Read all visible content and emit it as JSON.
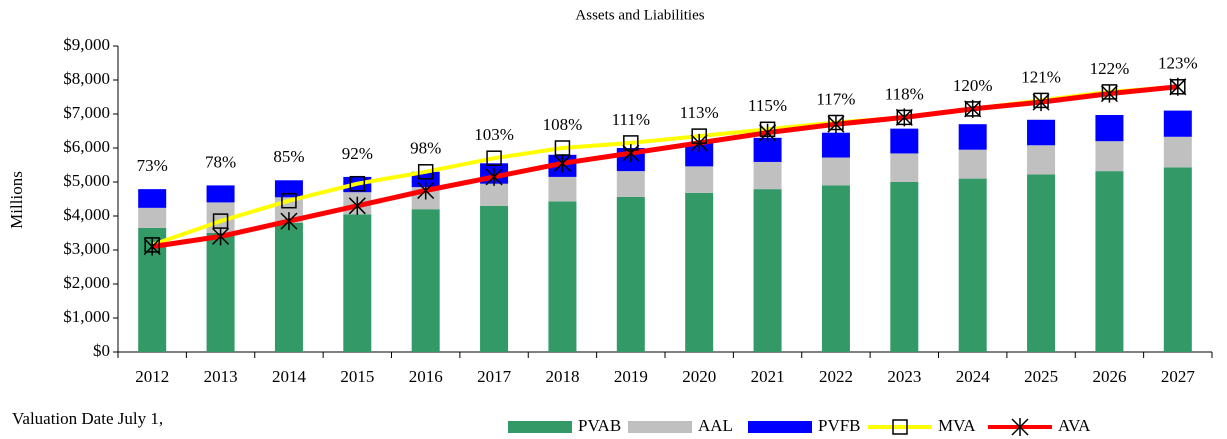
{
  "chart_data": {
    "type": "bar",
    "stacked": true,
    "title": "Assets and Liabilities",
    "y_label": "Millions",
    "x_label": "Valuation Date July 1,",
    "categories": [
      "2012",
      "2013",
      "2014",
      "2015",
      "2016",
      "2017",
      "2018",
      "2019",
      "2020",
      "2021",
      "2022",
      "2023",
      "2024",
      "2025",
      "2026",
      "2027"
    ],
    "series": [
      {
        "name": "PVAB",
        "type": "bar",
        "color": "#339966",
        "values": [
          3650,
          3500,
          3800,
          4050,
          4200,
          4300,
          4430,
          4560,
          4680,
          4790,
          4900,
          5000,
          5100,
          5220,
          5320,
          5430
        ]
      },
      {
        "name": "AAL",
        "type": "bar",
        "color": "#c0c0c0",
        "values": [
          590,
          900,
          750,
          650,
          650,
          650,
          720,
          760,
          780,
          800,
          820,
          840,
          850,
          860,
          880,
          900
        ]
      },
      {
        "name": "PVFB",
        "type": "bar",
        "color": "#0000ff",
        "values": [
          550,
          500,
          500,
          450,
          450,
          600,
          650,
          680,
          690,
          710,
          730,
          730,
          750,
          750,
          770,
          770
        ]
      },
      {
        "name": "MVA",
        "type": "line",
        "marker": "square",
        "color": "#ffff00",
        "values": [
          3150,
          3850,
          4450,
          4950,
          5300,
          5700,
          6000,
          6150,
          6350,
          6550,
          6750,
          6900,
          7150,
          7400,
          7650,
          7800
        ]
      },
      {
        "name": "AVA",
        "type": "line",
        "marker": "star",
        "color": "#ff0000",
        "values": [
          3100,
          3400,
          3850,
          4300,
          4750,
          5150,
          5550,
          5850,
          6150,
          6450,
          6700,
          6900,
          7150,
          7350,
          7600,
          7800
        ]
      }
    ],
    "annotations": [
      "73%",
      "78%",
      "85%",
      "92%",
      "98%",
      "103%",
      "108%",
      "111%",
      "113%",
      "115%",
      "117%",
      "118%",
      "120%",
      "121%",
      "122%",
      "123%"
    ],
    "ylim": [
      0,
      9000
    ],
    "yticks": [
      {
        "value": 0,
        "label": "$0"
      },
      {
        "value": 1000,
        "label": "$1,000"
      },
      {
        "value": 2000,
        "label": "$2,000"
      },
      {
        "value": 3000,
        "label": "$3,000"
      },
      {
        "value": 4000,
        "label": "$4,000"
      },
      {
        "value": 5000,
        "label": "$5,000"
      },
      {
        "value": 6000,
        "label": "$6,000"
      },
      {
        "value": 7000,
        "label": "$7,000"
      },
      {
        "value": 8000,
        "label": "$8,000"
      },
      {
        "value": 9000,
        "label": "$9,000"
      }
    ],
    "grid": false,
    "legend": "bottom"
  }
}
